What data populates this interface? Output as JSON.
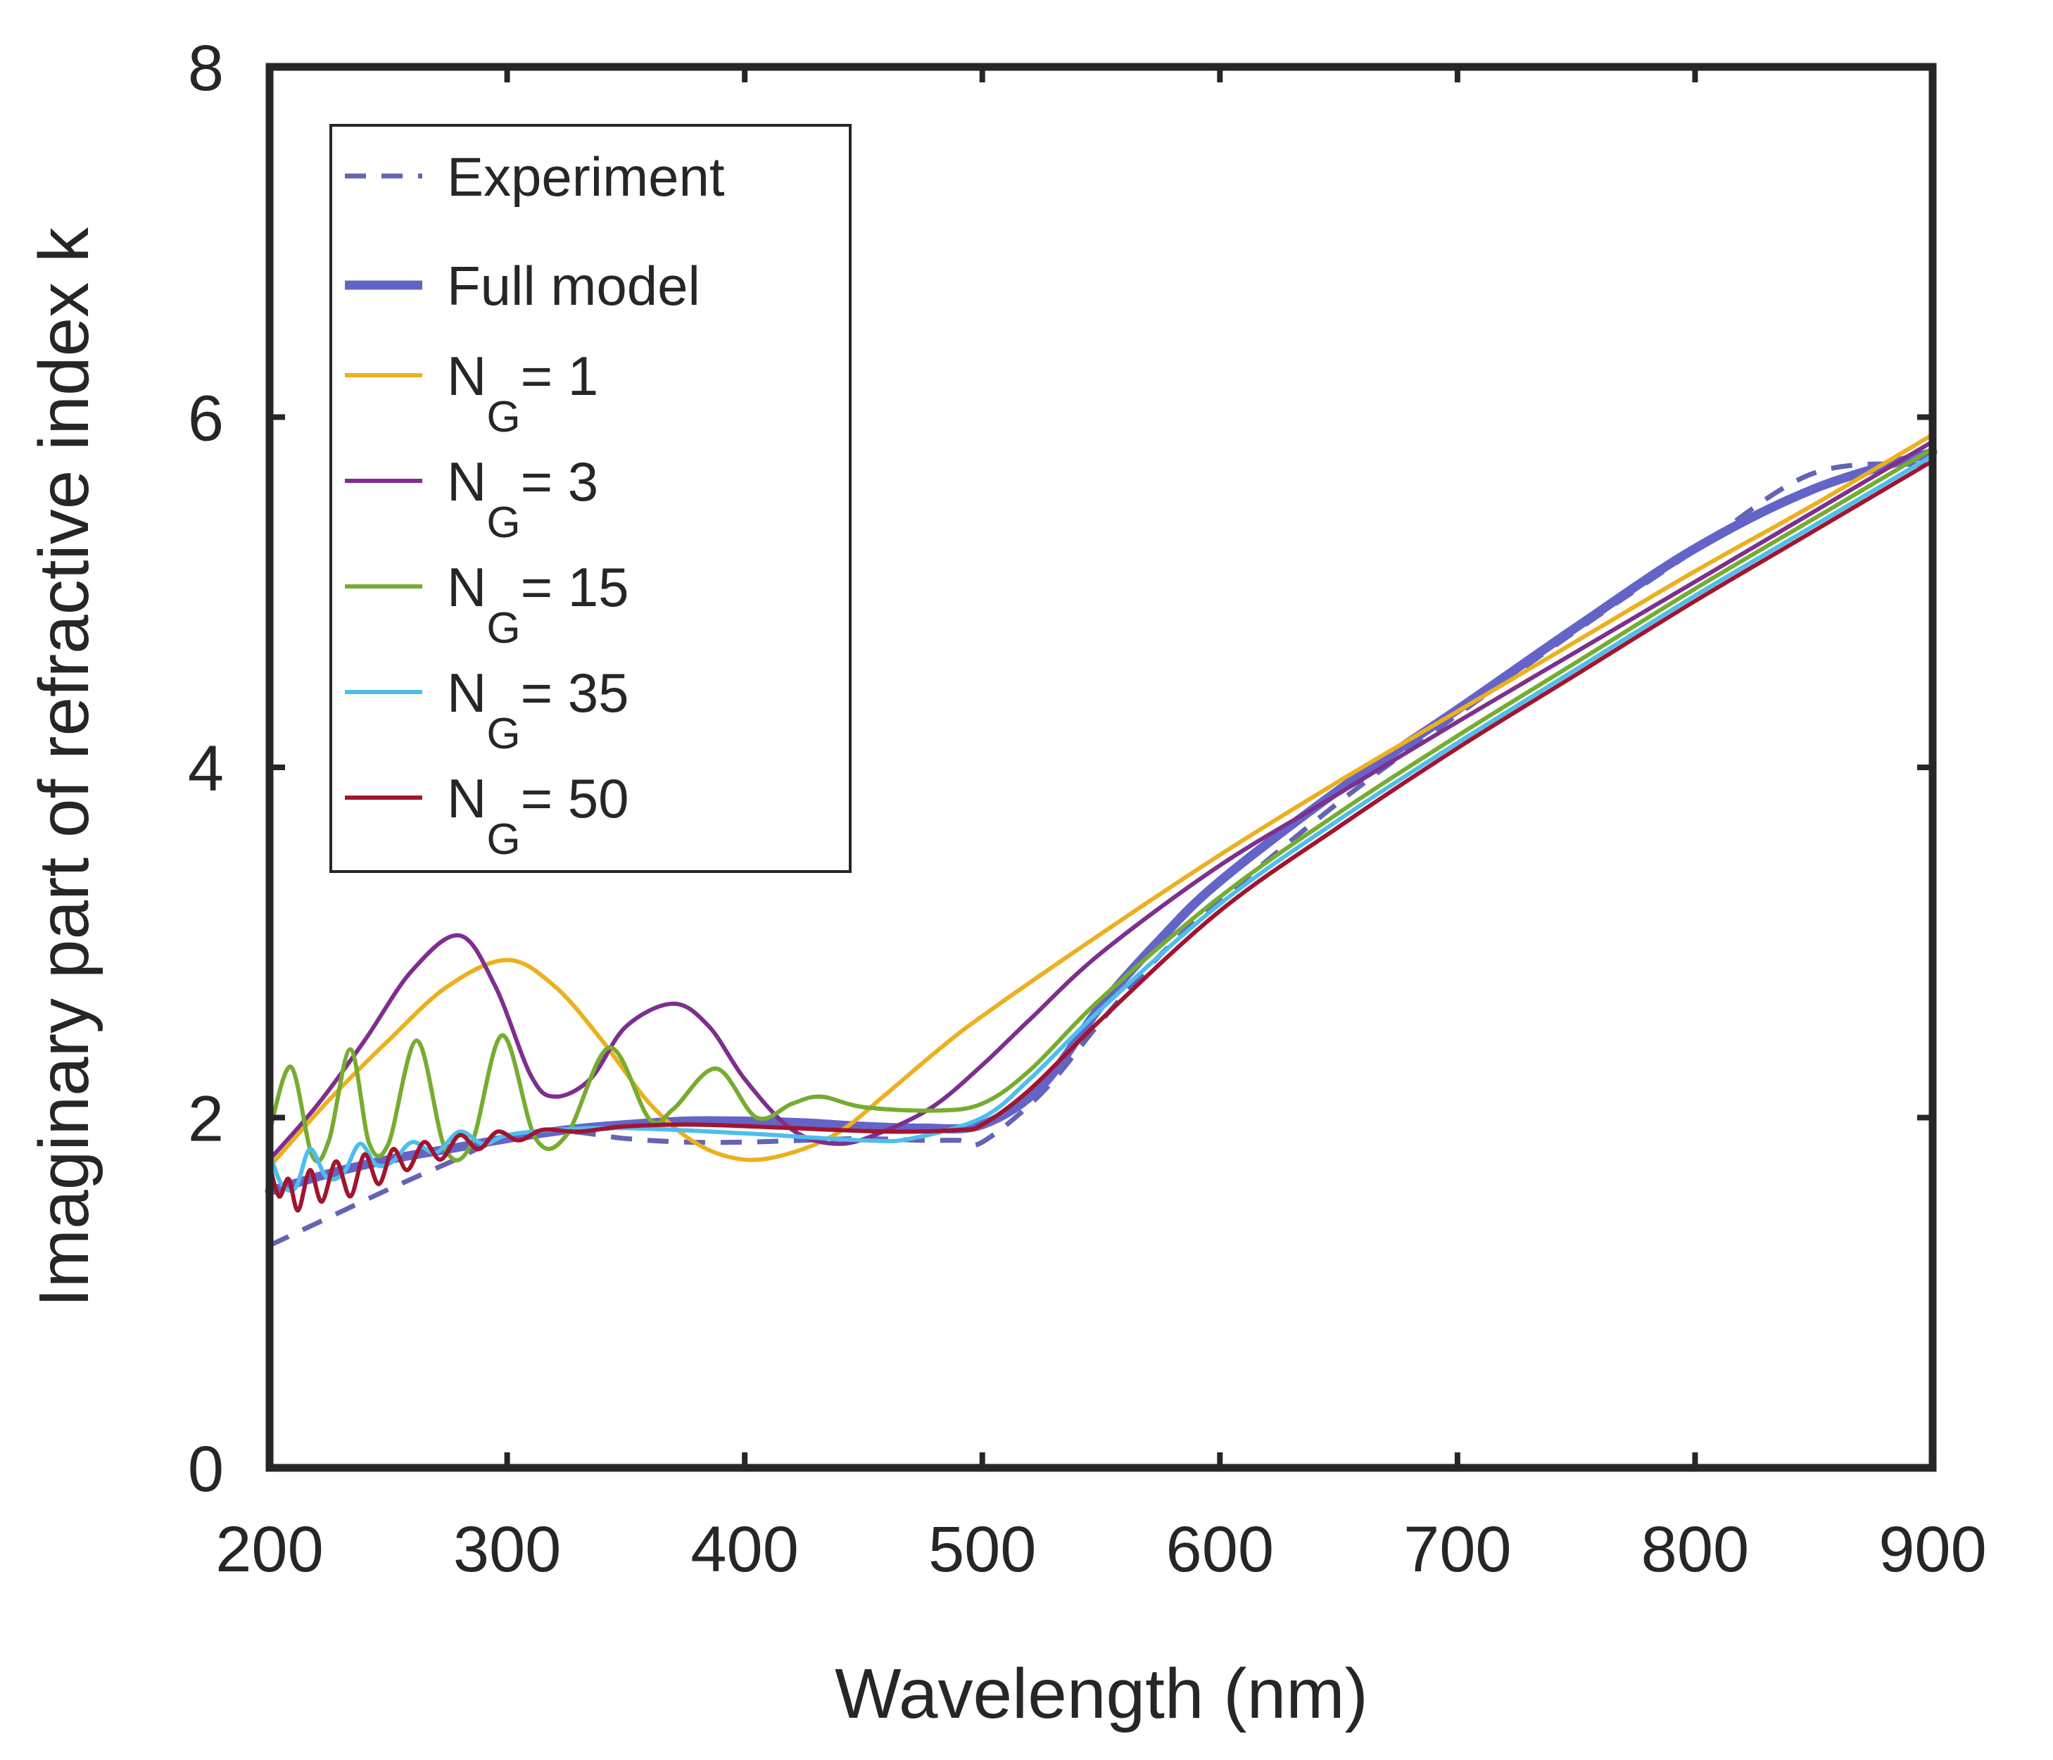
{
  "chart_data": {
    "type": "line",
    "title": "",
    "xlabel": "Wavelength (nm)",
    "ylabel": "Imaginary part of refractive index k",
    "xlim": [
      200,
      900
    ],
    "ylim": [
      0,
      8
    ],
    "xticks": [
      "200",
      "300",
      "400",
      "500",
      "600",
      "700",
      "800",
      "900"
    ],
    "yticks": [
      "0",
      "2",
      "4",
      "6",
      "8"
    ],
    "legend_position": "top-left",
    "series": [
      {
        "name": "Experiment",
        "label": "Experiment",
        "color": "#6464b4",
        "style": "dashed",
        "x": [
          200,
          225,
          250,
          275,
          300,
          325,
          350,
          375,
          400,
          425,
          450,
          475,
          490,
          500,
          525,
          550,
          575,
          600,
          650,
          700,
          750,
          800,
          850,
          900
        ],
        "y": [
          1.27,
          1.43,
          1.59,
          1.74,
          1.89,
          1.92,
          1.88,
          1.86,
          1.86,
          1.87,
          1.88,
          1.87,
          1.87,
          1.86,
          2.14,
          2.55,
          2.93,
          3.24,
          3.8,
          4.3,
          4.78,
          5.24,
          5.68,
          5.73
        ]
      },
      {
        "name": "Full model",
        "label": "Full model",
        "color": "#6464c8",
        "style": "solid-thick",
        "x": [
          200,
          225,
          250,
          275,
          300,
          325,
          350,
          375,
          400,
          425,
          450,
          475,
          500,
          525,
          550,
          575,
          600,
          650,
          700,
          750,
          800,
          850,
          900
        ],
        "y": [
          1.58,
          1.68,
          1.76,
          1.82,
          1.88,
          1.93,
          1.96,
          1.98,
          1.98,
          1.97,
          1.95,
          1.94,
          1.96,
          2.18,
          2.64,
          3.02,
          3.35,
          3.87,
          4.33,
          4.8,
          5.25,
          5.59,
          5.8
        ]
      },
      {
        "name": "N_G = 1",
        "label": "N",
        "subscript": "G",
        "suffix": "= 1",
        "color": "#ecb01f",
        "style": "solid",
        "x": [
          200,
          225,
          250,
          275,
          300,
          320,
          340,
          360,
          380,
          400,
          420,
          440,
          460,
          480,
          500,
          550,
          600,
          650,
          700,
          750,
          800,
          850,
          900
        ],
        "y": [
          1.72,
          2.1,
          2.44,
          2.75,
          2.9,
          2.75,
          2.44,
          2.08,
          1.85,
          1.76,
          1.8,
          1.92,
          2.14,
          2.37,
          2.58,
          3.05,
          3.5,
          3.92,
          4.32,
          4.72,
          5.12,
          5.5,
          5.9
        ]
      },
      {
        "name": "N_G = 3",
        "label": "N",
        "subscript": "G",
        "suffix": "= 3",
        "color": "#7e2f8e",
        "style": "solid",
        "x": [
          200,
          220,
          240,
          260,
          280,
          295,
          310,
          320,
          335,
          350,
          370,
          385,
          400,
          420,
          440,
          460,
          480,
          500,
          520,
          550,
          600,
          650,
          700,
          750,
          800,
          850,
          900
        ],
        "y": [
          1.76,
          2.07,
          2.44,
          2.84,
          3.04,
          2.75,
          2.24,
          2.12,
          2.22,
          2.52,
          2.65,
          2.52,
          2.22,
          1.93,
          1.85,
          1.93,
          2.07,
          2.3,
          2.56,
          2.94,
          3.44,
          3.85,
          4.26,
          4.66,
          5.06,
          5.46,
          5.86
        ]
      },
      {
        "name": "N_G = 15",
        "label": "N",
        "subscript": "G",
        "suffix": "= 15",
        "color": "#77ac30",
        "style": "solid",
        "x": [
          200,
          209,
          218,
          225,
          234,
          242,
          250,
          262,
          274,
          285,
          298,
          312,
          325,
          343,
          360,
          370,
          388,
          405,
          420,
          432,
          450,
          480,
          500,
          520,
          550,
          600,
          650,
          700,
          750,
          800,
          850,
          900
        ],
        "y": [
          1.92,
          2.29,
          1.78,
          1.87,
          2.39,
          1.85,
          1.85,
          2.44,
          1.82,
          1.85,
          2.47,
          1.88,
          1.9,
          2.4,
          1.99,
          2.05,
          2.28,
          2.0,
          2.08,
          2.12,
          2.06,
          2.04,
          2.08,
          2.27,
          2.68,
          3.26,
          3.74,
          4.18,
          4.6,
          5.02,
          5.42,
          5.82
        ]
      },
      {
        "name": "N_G = 35",
        "label": "N",
        "subscript": "G",
        "suffix": "= 35",
        "color": "#4dbeee",
        "style": "solid",
        "x": [
          200,
          205,
          211,
          217,
          224,
          231,
          238,
          245,
          252,
          260,
          270,
          280,
          290,
          300,
          320,
          350,
          400,
          450,
          470,
          500,
          520,
          550,
          600,
          650,
          700,
          750,
          800,
          850,
          900
        ],
        "y": [
          1.8,
          1.62,
          1.6,
          1.82,
          1.66,
          1.68,
          1.85,
          1.73,
          1.75,
          1.86,
          1.8,
          1.92,
          1.85,
          1.9,
          1.93,
          1.94,
          1.91,
          1.87,
          1.88,
          2.0,
          2.22,
          2.62,
          3.22,
          3.7,
          4.14,
          4.56,
          4.98,
          5.38,
          5.78
        ]
      },
      {
        "name": "N_G = 50",
        "label": "N",
        "subscript": "G",
        "suffix": "= 50",
        "color": "#a2142f",
        "style": "solid",
        "x": [
          200,
          204,
          208,
          212,
          217,
          222,
          228,
          234,
          240,
          246,
          252,
          258,
          265,
          272,
          280,
          288,
          296,
          305,
          315,
          330,
          350,
          380,
          420,
          460,
          490,
          500,
          520,
          550,
          600,
          650,
          700,
          750,
          800,
          850,
          900
        ],
        "y": [
          1.73,
          1.55,
          1.65,
          1.47,
          1.7,
          1.52,
          1.75,
          1.55,
          1.79,
          1.62,
          1.82,
          1.7,
          1.86,
          1.76,
          1.9,
          1.82,
          1.92,
          1.87,
          1.93,
          1.92,
          1.95,
          1.96,
          1.94,
          1.92,
          1.93,
          1.96,
          2.16,
          2.56,
          3.18,
          3.66,
          4.11,
          4.53,
          4.95,
          5.35,
          5.75
        ]
      }
    ]
  }
}
